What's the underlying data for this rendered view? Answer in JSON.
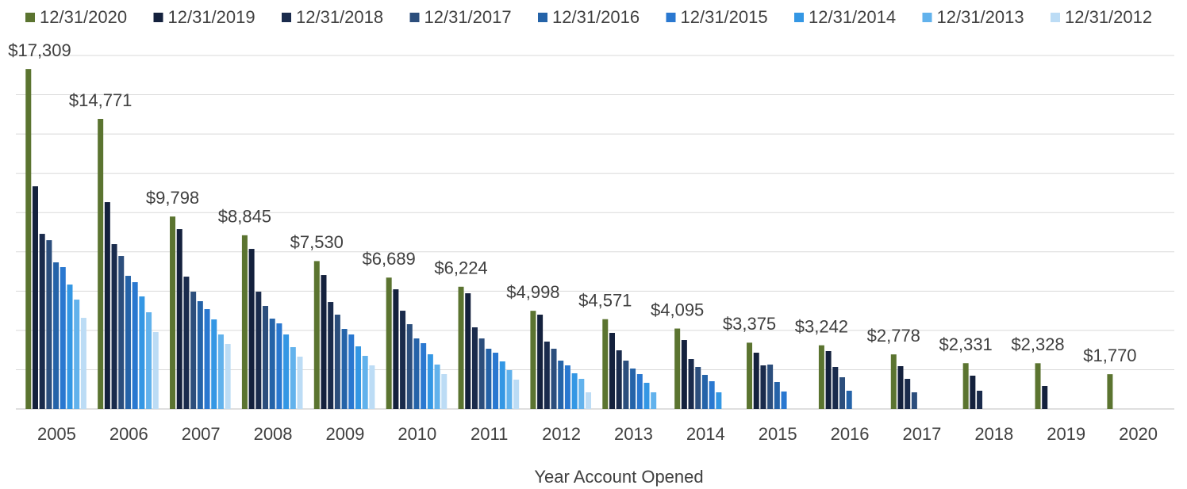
{
  "chart_data": {
    "type": "bar",
    "x_label": "Year Account Opened",
    "categories": [
      "2005",
      "2006",
      "2007",
      "2008",
      "2009",
      "2010",
      "2011",
      "2012",
      "2013",
      "2014",
      "2015",
      "2016",
      "2017",
      "2018",
      "2019",
      "2020"
    ],
    "ylim": [
      0,
      18000
    ],
    "yticks": [
      0,
      2000,
      4000,
      6000,
      8000,
      10000,
      12000,
      14000,
      16000,
      18000
    ],
    "grid": true,
    "legend": "top",
    "series": [
      {
        "name": "12/31/2020",
        "color": "#5b7430",
        "values": [
          17309,
          14771,
          9798,
          8845,
          7530,
          6689,
          6224,
          4998,
          4571,
          4095,
          3375,
          3242,
          2778,
          2331,
          2328,
          1770
        ],
        "value_labels": [
          "$17,309",
          "$14,771",
          "$9,798",
          "$8,845",
          "$7,530",
          "$6,689",
          "$6,224",
          "$4,998",
          "$4,571",
          "$4,095",
          "$3,375",
          "$3,242",
          "$2,778",
          "$2,331",
          "$2,328",
          "$1,770"
        ]
      },
      {
        "name": "12/31/2019",
        "color": "#14213d",
        "values": [
          11338,
          10531,
          9159,
          8151,
          6819,
          6093,
          5891,
          4802,
          3874,
          3510,
          2865,
          2946,
          2179,
          1695,
          1170,
          null
        ]
      },
      {
        "name": "12/31/2018",
        "color": "#1a2b4c",
        "values": [
          8917,
          8393,
          6738,
          5972,
          5447,
          5003,
          4156,
          3430,
          2986,
          2542,
          2219,
          2139,
          1533,
          928,
          null,
          null
        ]
      },
      {
        "name": "12/31/2017",
        "color": "#2c4e7c",
        "values": [
          8594,
          7788,
          5972,
          5246,
          4802,
          4317,
          3591,
          3067,
          2461,
          2139,
          2260,
          1614,
          847,
          null,
          null,
          null
        ]
      },
      {
        "name": "12/31/2016",
        "color": "#2563a8",
        "values": [
          7465,
          6779,
          5488,
          4600,
          4075,
          3591,
          3067,
          2461,
          2058,
          1735,
          1372,
          928,
          null,
          null,
          null,
          null
        ]
      },
      {
        "name": "12/31/2015",
        "color": "#2a78d0",
        "values": [
          7223,
          6456,
          5084,
          4358,
          3793,
          3349,
          2865,
          2219,
          1775,
          1412,
          888,
          null,
          null,
          null,
          null,
          null
        ]
      },
      {
        "name": "12/31/2014",
        "color": "#3497e4",
        "values": [
          6335,
          5730,
          4560,
          3793,
          3188,
          2784,
          2421,
          1816,
          1332,
          847,
          null,
          null,
          null,
          null,
          null,
          null
        ]
      },
      {
        "name": "12/31/2013",
        "color": "#62b2ec",
        "values": [
          5568,
          4923,
          3793,
          3147,
          2703,
          2260,
          1977,
          1533,
          847,
          null,
          null,
          null,
          null,
          null,
          null,
          null
        ]
      },
      {
        "name": "12/31/2012",
        "color": "#bcdcf5",
        "values": [
          4640,
          3914,
          3309,
          2663,
          2219,
          1775,
          1493,
          847,
          null,
          null,
          null,
          null,
          null,
          null,
          null,
          null
        ]
      }
    ]
  }
}
